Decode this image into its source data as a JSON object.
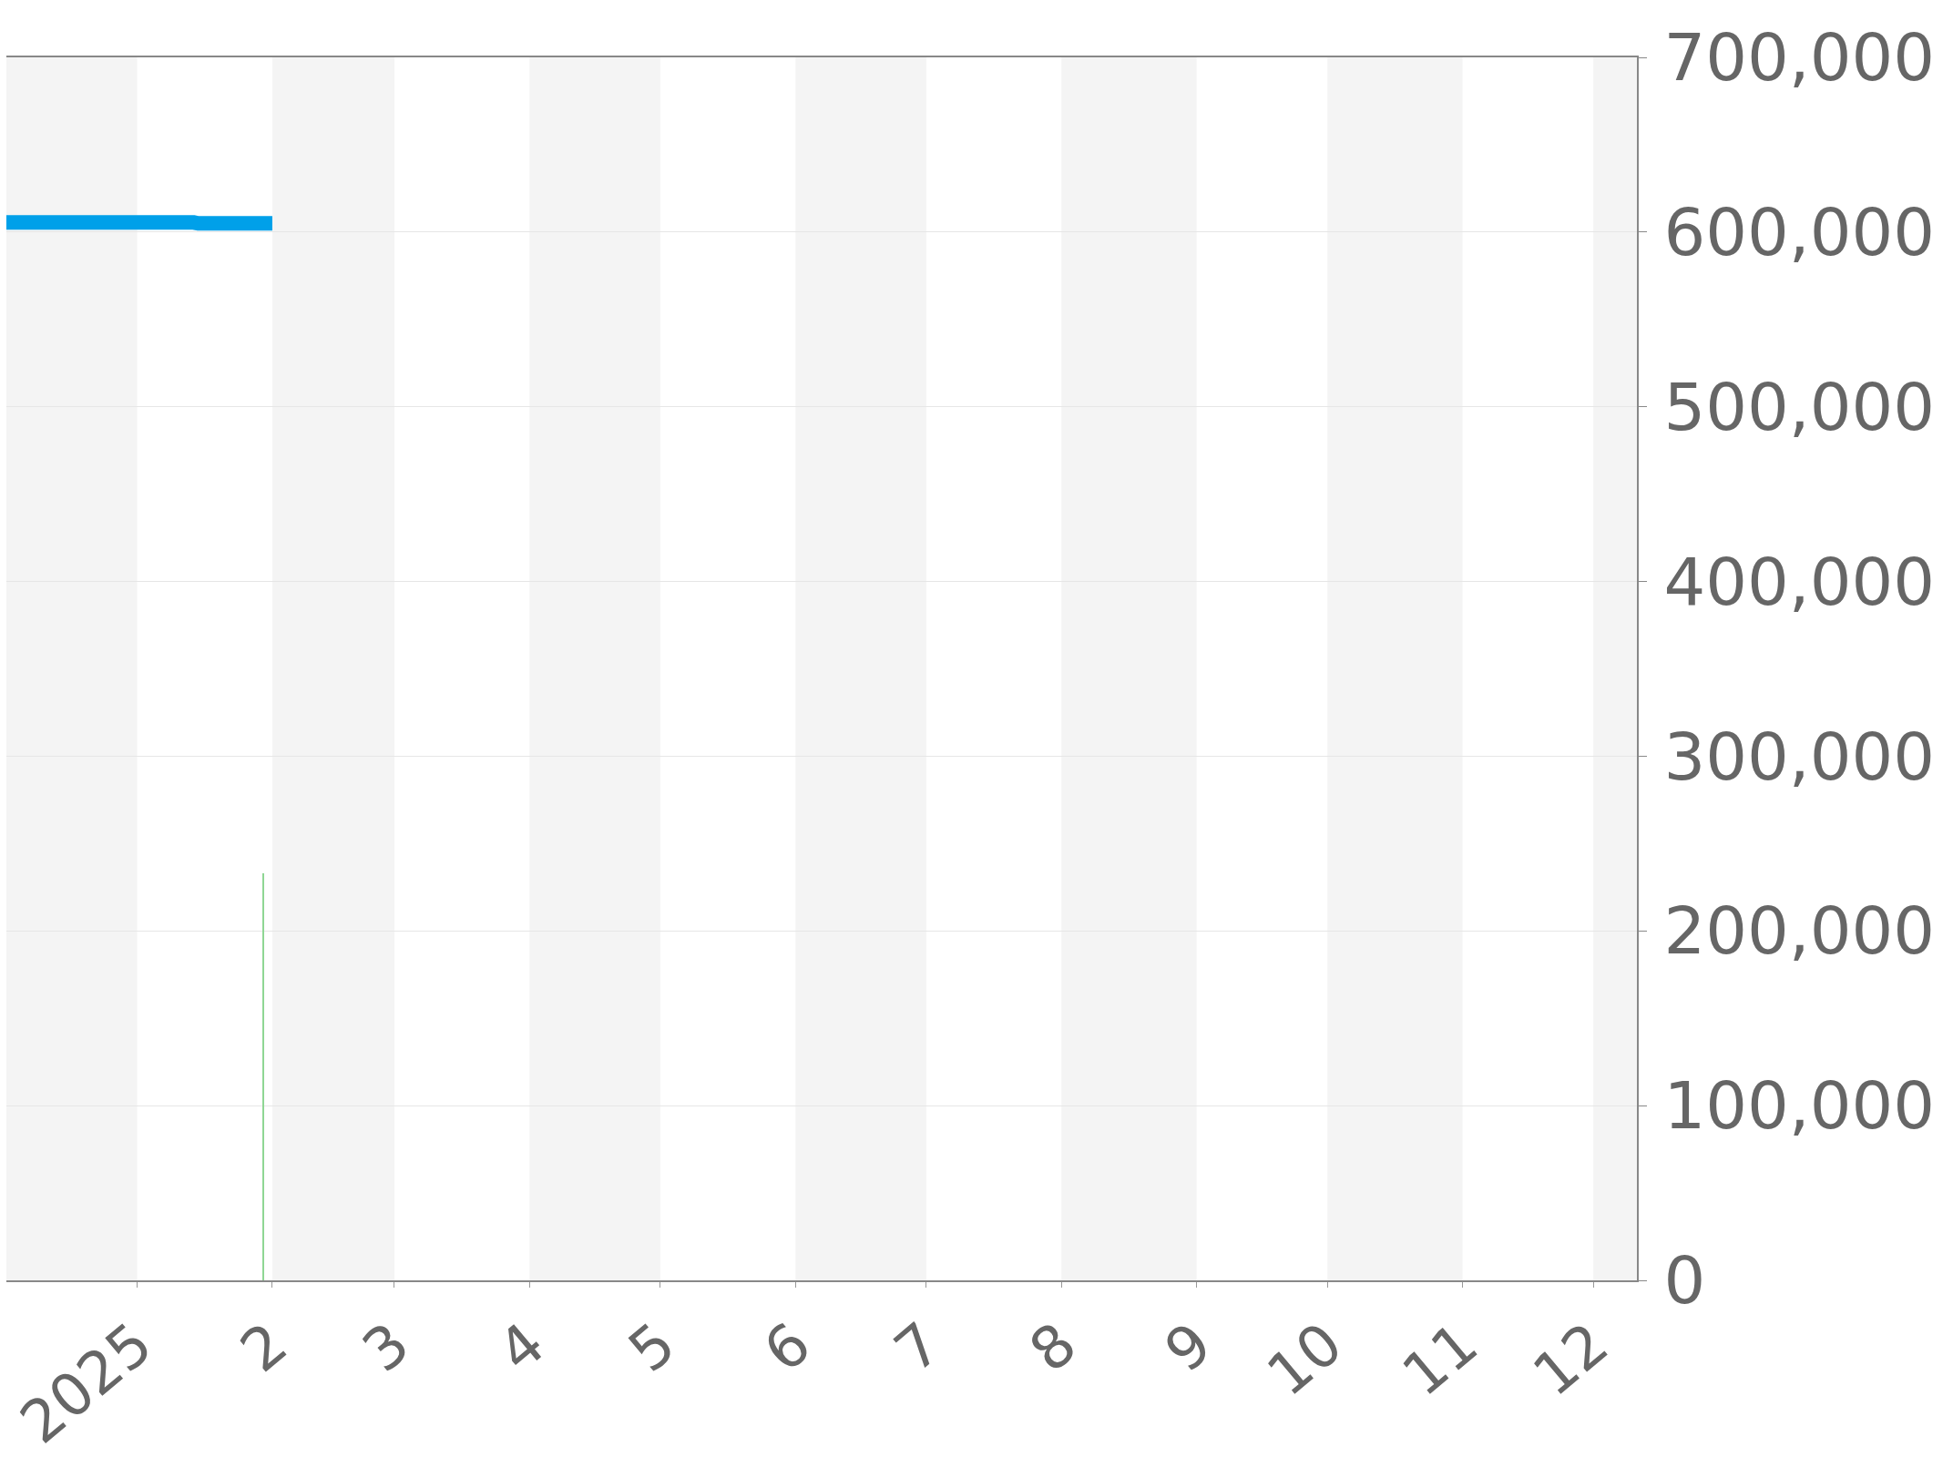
{
  "chart_data": {
    "type": "line",
    "xlim": [
      "2024-12-02",
      "2025-12-11"
    ],
    "xticks": [
      {
        "value": "2025-01-01",
        "label": "2025"
      },
      {
        "value": "2025-02-01",
        "label": "2"
      },
      {
        "value": "2025-03-01",
        "label": "3"
      },
      {
        "value": "2025-04-01",
        "label": "4"
      },
      {
        "value": "2025-05-01",
        "label": "5"
      },
      {
        "value": "2025-06-01",
        "label": "6"
      },
      {
        "value": "2025-07-01",
        "label": "7"
      },
      {
        "value": "2025-08-01",
        "label": "8"
      },
      {
        "value": "2025-09-01",
        "label": "9"
      },
      {
        "value": "2025-10-01",
        "label": "10"
      },
      {
        "value": "2025-11-01",
        "label": "11"
      },
      {
        "value": "2025-12-01",
        "label": "12"
      }
    ],
    "ylim": [
      0,
      700000
    ],
    "yticks": [
      0,
      {
        "value": 100000,
        "label": "100,000"
      },
      {
        "value": 200000,
        "label": "200,000"
      },
      {
        "value": 300000,
        "label": "300,000"
      },
      {
        "value": 400000,
        "label": "400,000"
      },
      {
        "value": 500000,
        "label": "500,000"
      },
      {
        "value": 600000,
        "label": "600,000"
      },
      {
        "value": 700000,
        "label": "700,000"
      }
    ],
    "grid": "y",
    "bands": [
      {
        "axis": "x",
        "from": "2024-12-02",
        "to": "2025-01-01",
        "color": "#f4f4f4"
      },
      {
        "axis": "x",
        "from": "2025-02-01",
        "to": "2025-03-01",
        "color": "#f4f4f4"
      },
      {
        "axis": "x",
        "from": "2025-04-01",
        "to": "2025-05-01",
        "color": "#f4f4f4"
      },
      {
        "axis": "x",
        "from": "2025-06-01",
        "to": "2025-07-01",
        "color": "#f4f4f4"
      },
      {
        "axis": "x",
        "from": "2025-08-01",
        "to": "2025-09-01",
        "color": "#f4f4f4"
      },
      {
        "axis": "x",
        "from": "2025-10-01",
        "to": "2025-11-01",
        "color": "#f4f4f4"
      },
      {
        "axis": "x",
        "from": "2025-12-01",
        "to": "2025-12-11",
        "color": "#f4f4f4"
      }
    ],
    "series": [
      {
        "color": "#00a0e9",
        "x": [
          "2024-12-02",
          "2025-01-14",
          "2025-01-15",
          "2025-02-01"
        ],
        "values": [
          605500,
          605500,
          605000,
          605000
        ]
      },
      {
        "type": "bar",
        "color": "#8fd694",
        "x": [
          "2025-01-30"
        ],
        "values": [
          233000
        ]
      }
    ]
  }
}
